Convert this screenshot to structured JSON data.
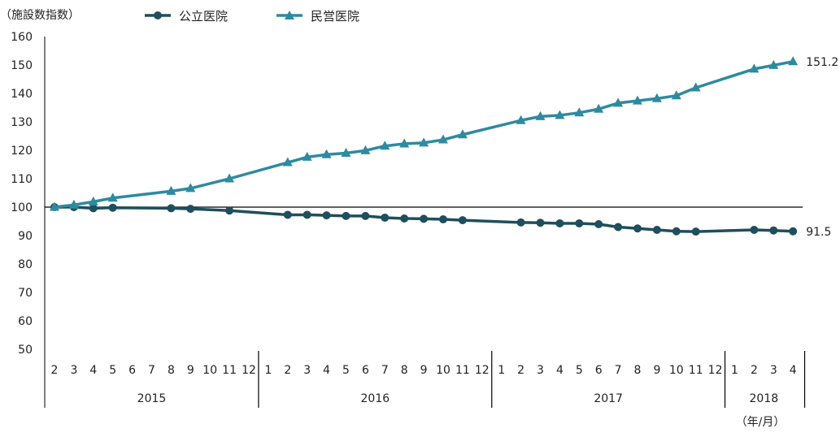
{
  "chart_data": {
    "type": "line",
    "ylabel": "（施設数指数）",
    "xunit": "（年/月）",
    "ylim": [
      50,
      160
    ],
    "yticks": [
      50,
      60,
      70,
      80,
      90,
      100,
      110,
      120,
      130,
      140,
      150,
      160
    ],
    "legend_position": "top-left",
    "grid": false,
    "reference_line": 100,
    "month_labels": [
      "2",
      "3",
      "4",
      "5",
      "6",
      "7",
      "8",
      "9",
      "10",
      "11",
      "12",
      "1",
      "2",
      "3",
      "4",
      "5",
      "6",
      "7",
      "8",
      "9",
      "10",
      "11",
      "12",
      "1",
      "2",
      "3",
      "4",
      "5",
      "6",
      "7",
      "8",
      "9",
      "10",
      "11",
      "12",
      "1",
      "2",
      "3",
      "4"
    ],
    "years": [
      {
        "label": "2015",
        "start": "2015-02",
        "end": "2015-12"
      },
      {
        "label": "2016",
        "start": "2016-01",
        "end": "2016-12"
      },
      {
        "label": "2017",
        "start": "2017-01",
        "end": "2017-12"
      },
      {
        "label": "2018",
        "start": "2018-01",
        "end": "2018-04"
      }
    ],
    "series": [
      {
        "name": "公立医院",
        "color": "#1f4e5c",
        "marker": "circle",
        "end_label": "91.5",
        "points": [
          [
            "2015-02",
            100.0
          ],
          [
            "2015-03",
            100.0
          ],
          [
            "2015-04",
            99.6
          ],
          [
            "2015-05",
            99.8
          ],
          [
            "2015-08",
            99.6
          ],
          [
            "2015-09",
            99.4
          ],
          [
            "2015-11",
            98.8
          ],
          [
            "2016-02",
            97.3
          ],
          [
            "2016-03",
            97.3
          ],
          [
            "2016-04",
            97.1
          ],
          [
            "2016-05",
            96.9
          ],
          [
            "2016-06",
            96.9
          ],
          [
            "2016-07",
            96.3
          ],
          [
            "2016-08",
            96.0
          ],
          [
            "2016-09",
            95.9
          ],
          [
            "2016-10",
            95.7
          ],
          [
            "2016-11",
            95.4
          ],
          [
            "2017-02",
            94.6
          ],
          [
            "2017-03",
            94.5
          ],
          [
            "2017-04",
            94.3
          ],
          [
            "2017-05",
            94.3
          ],
          [
            "2017-06",
            94.0
          ],
          [
            "2017-07",
            93.0
          ],
          [
            "2017-08",
            92.5
          ],
          [
            "2017-09",
            92.0
          ],
          [
            "2017-10",
            91.5
          ],
          [
            "2017-11",
            91.4
          ],
          [
            "2018-02",
            92.0
          ],
          [
            "2018-03",
            91.8
          ],
          [
            "2018-04",
            91.5
          ]
        ]
      },
      {
        "name": "民営医院",
        "color": "#2e8aa0",
        "marker": "triangle",
        "end_label": "151.2",
        "points": [
          [
            "2015-02",
            100.0
          ],
          [
            "2015-03",
            100.8
          ],
          [
            "2015-04",
            101.9
          ],
          [
            "2015-05",
            103.2
          ],
          [
            "2015-08",
            105.6
          ],
          [
            "2015-09",
            106.6
          ],
          [
            "2015-11",
            110.0
          ],
          [
            "2016-02",
            115.7
          ],
          [
            "2016-03",
            117.6
          ],
          [
            "2016-04",
            118.5
          ],
          [
            "2016-05",
            119.0
          ],
          [
            "2016-06",
            119.9
          ],
          [
            "2016-07",
            121.5
          ],
          [
            "2016-08",
            122.3
          ],
          [
            "2016-09",
            122.6
          ],
          [
            "2016-10",
            123.7
          ],
          [
            "2016-11",
            125.5
          ],
          [
            "2017-02",
            130.5
          ],
          [
            "2017-03",
            131.9
          ],
          [
            "2017-04",
            132.3
          ],
          [
            "2017-05",
            133.2
          ],
          [
            "2017-06",
            134.5
          ],
          [
            "2017-07",
            136.6
          ],
          [
            "2017-08",
            137.4
          ],
          [
            "2017-09",
            138.2
          ],
          [
            "2017-10",
            139.2
          ],
          [
            "2017-11",
            142.0
          ],
          [
            "2018-02",
            148.6
          ],
          [
            "2018-03",
            149.9
          ],
          [
            "2018-04",
            151.2
          ]
        ]
      }
    ]
  }
}
